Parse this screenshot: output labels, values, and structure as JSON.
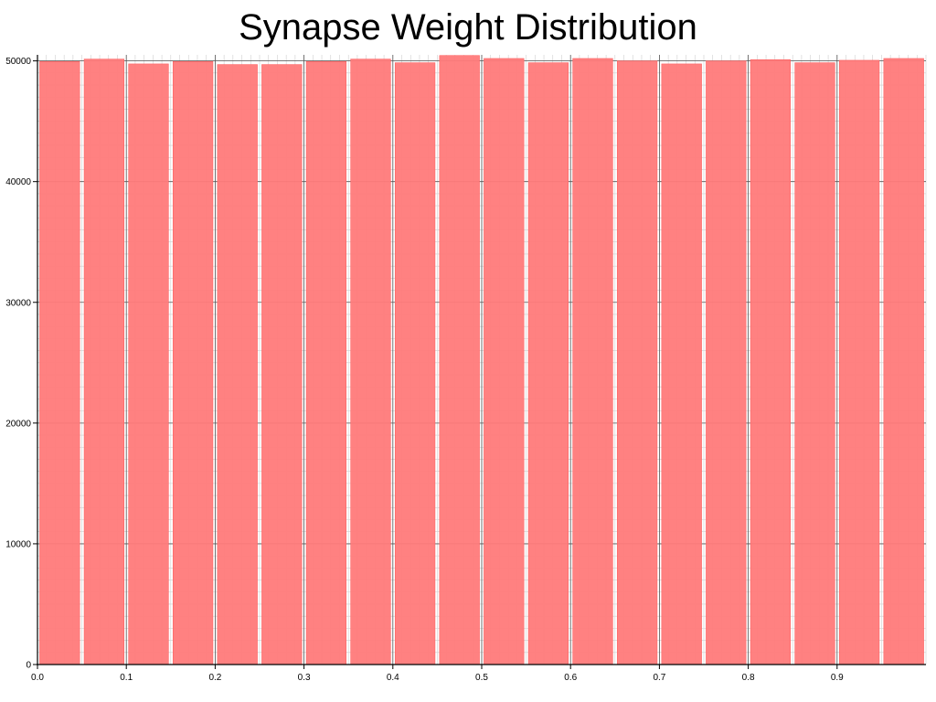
{
  "chart_data": {
    "type": "bar",
    "title": "Synapse Weight Distribution",
    "xlabel": "",
    "ylabel": "",
    "x": [
      0.025,
      0.075,
      0.125,
      0.175,
      0.225,
      0.275,
      0.325,
      0.375,
      0.425,
      0.475,
      0.525,
      0.575,
      0.625,
      0.675,
      0.725,
      0.775,
      0.825,
      0.875,
      0.925,
      0.975
    ],
    "values": [
      49950,
      50150,
      49750,
      49950,
      49700,
      49700,
      49950,
      50150,
      49850,
      50450,
      50200,
      49850,
      50200,
      50000,
      49750,
      50000,
      50100,
      49850,
      50050,
      50200
    ],
    "bin_width": 0.05,
    "xlim": [
      0,
      1.0
    ],
    "ylim": [
      0,
      50500
    ],
    "xticks": [
      0.0,
      0.1,
      0.2,
      0.3,
      0.4,
      0.5,
      0.6,
      0.7,
      0.8,
      0.9
    ],
    "xtick_labels": [
      "0.0",
      "0.1",
      "0.2",
      "0.3",
      "0.4",
      "0.5",
      "0.6",
      "0.7",
      "0.8",
      "0.9"
    ],
    "yticks": [
      0,
      10000,
      20000,
      30000,
      40000,
      50000
    ],
    "ytick_labels": [
      "0",
      "10000",
      "20000",
      "30000",
      "40000",
      "50000"
    ],
    "grid": true,
    "bar_color": "#ff7a7a",
    "bar_edge_color": "#ff5a5a",
    "grid_major_color": "#555555",
    "grid_minor_color": "#cfcfcf"
  }
}
